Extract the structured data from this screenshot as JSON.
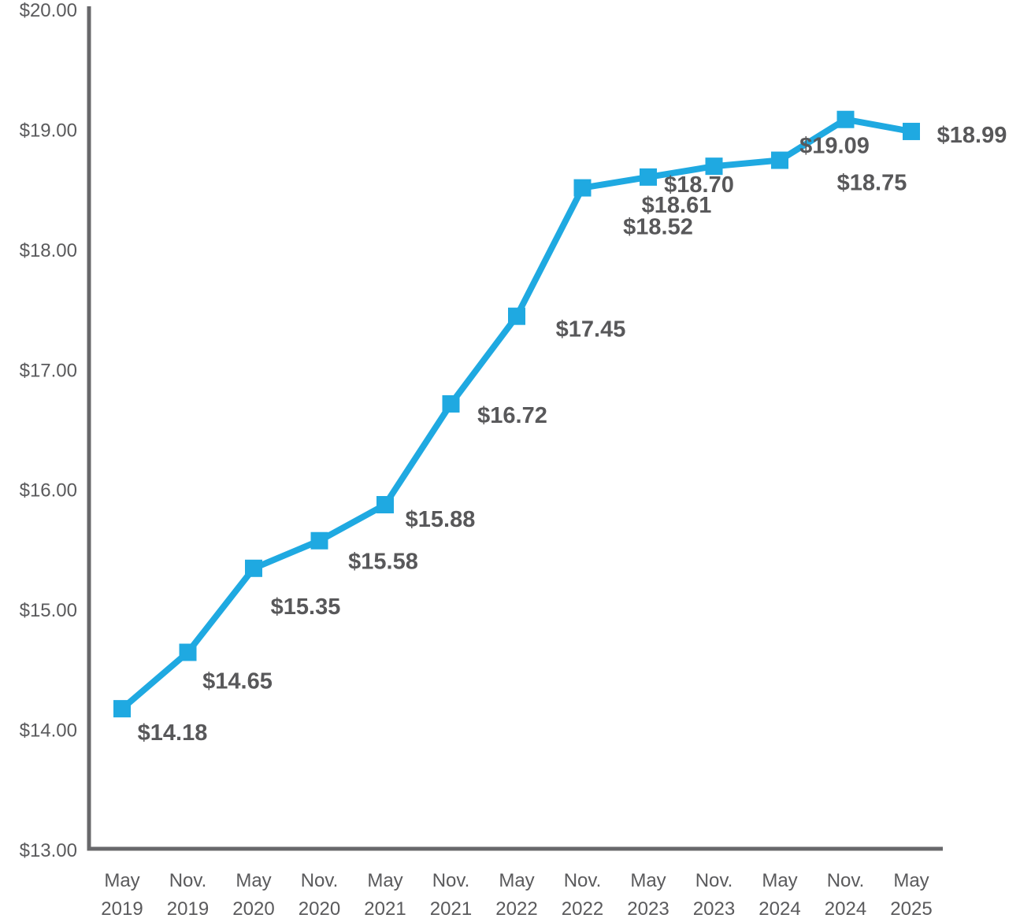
{
  "chart_data": {
    "type": "line",
    "categories": [
      [
        "May",
        "2019"
      ],
      [
        "Nov.",
        "2019"
      ],
      [
        "May",
        "2020"
      ],
      [
        "Nov.",
        "2020"
      ],
      [
        "May",
        "2021"
      ],
      [
        "Nov.",
        "2021"
      ],
      [
        "May",
        "2022"
      ],
      [
        "Nov.",
        "2022"
      ],
      [
        "May",
        "2023"
      ],
      [
        "Nov.",
        "2023"
      ],
      [
        "May",
        "2024"
      ],
      [
        "Nov.",
        "2024"
      ],
      [
        "May",
        "2025"
      ]
    ],
    "values": [
      14.18,
      14.65,
      15.35,
      15.58,
      15.88,
      16.72,
      17.45,
      18.52,
      18.61,
      18.7,
      18.75,
      19.09,
      18.99
    ],
    "data_labels": [
      "$14.18",
      "$14.65",
      "$15.35",
      "$15.58",
      "$15.88",
      "$16.72",
      "$17.45",
      "$18.52",
      "$18.61",
      "$18.70",
      "$18.75",
      "$19.09",
      "$18.99"
    ],
    "yticks": [
      13,
      14,
      15,
      16,
      17,
      18,
      19,
      20
    ],
    "ytick_labels": [
      "$13.00",
      "$14.00",
      "$15.00",
      "$16.00",
      "$17.00",
      "$18.00",
      "$19.00",
      "$20.00"
    ],
    "ylim": [
      13,
      20
    ],
    "title": "",
    "xlabel": "",
    "ylabel": "",
    "grid": false,
    "marker": "square",
    "colors": {
      "line": "#1fa9e1",
      "axis": "#68686b",
      "text": "#58585a"
    }
  }
}
